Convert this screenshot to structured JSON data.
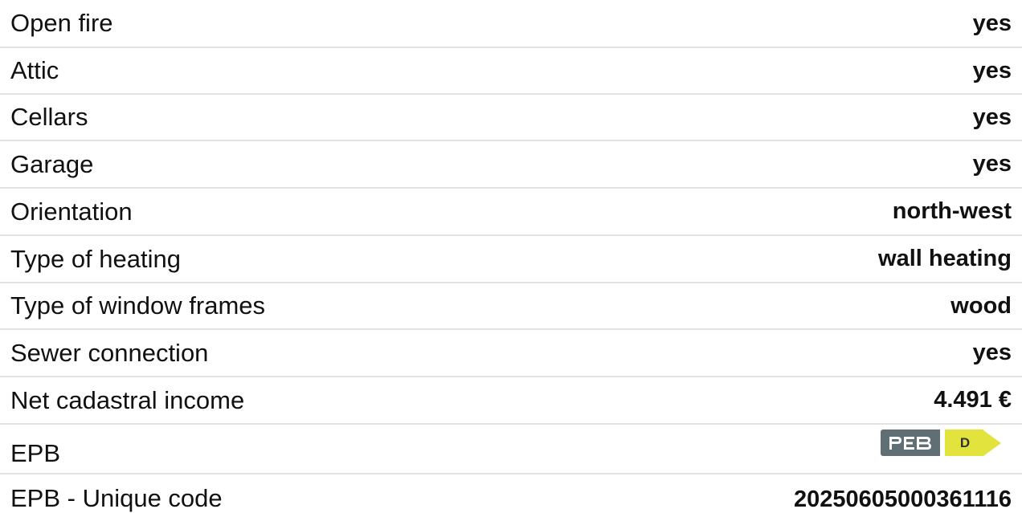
{
  "properties": [
    {
      "label": "Open fire",
      "value": "yes"
    },
    {
      "label": "Attic",
      "value": "yes"
    },
    {
      "label": "Cellars",
      "value": "yes"
    },
    {
      "label": "Garage",
      "value": "yes"
    },
    {
      "label": "Orientation",
      "value": "north-west"
    },
    {
      "label": "Type of heating",
      "value": "wall heating"
    },
    {
      "label": "Type of window frames",
      "value": "wood"
    },
    {
      "label": "Sewer connection",
      "value": "yes"
    },
    {
      "label": "Net cadastral income",
      "value": "4.491 €"
    },
    {
      "label": "EPB",
      "badge": {
        "logo_text": "PEB",
        "energy_class": "D",
        "class_color": "#e3e33e",
        "logo_color": "#606f73"
      }
    },
    {
      "label": "EPB - Unique code",
      "value": "20250605000361116"
    }
  ]
}
